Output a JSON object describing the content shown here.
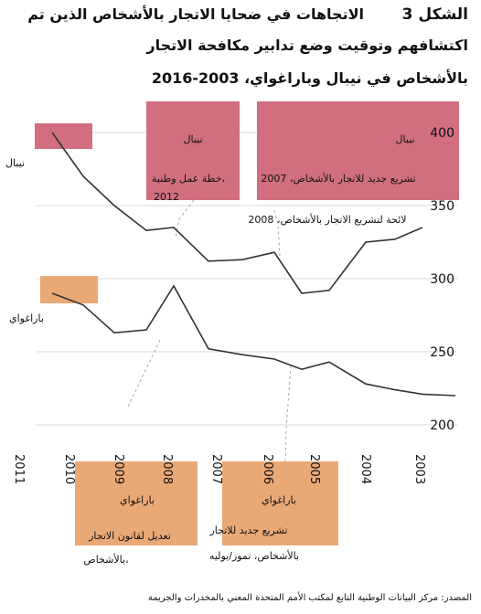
{
  "figure": {
    "number": "الشكل 3",
    "title_line1": "الاتجاهات في ضحايا الاتجار بالأشخاص الذين تم",
    "title_line2": "اكتشافهم وتوقيت وضع تدابير مكافحة الاتجار",
    "title_line3": "بالأشخاص في نيبال وباراغواي، 2003-2016"
  },
  "source": "المصدر: مركز البيانات الوطنية التابع لمكتب الأمم المتحدة المعني بالمخدرات والجريمة",
  "colors": {
    "nepal": "#d16f80",
    "paraguay": "#e9a977",
    "grid": "#d9d9d9",
    "line": "#333333"
  },
  "chart_data": {
    "type": "line",
    "x": [
      "2003",
      "2004",
      "2005",
      "2006",
      "2007",
      "2008",
      "2009",
      "2010",
      "2011",
      "2012",
      "2013",
      "2014",
      "2015",
      "2016"
    ],
    "x_tick_labels": [
      "2003",
      "2004",
      "2005",
      "2006",
      "2007",
      "2008",
      "2009",
      "2010",
      "2011"
    ],
    "ylim": [
      200,
      400
    ],
    "y_ticks": [
      200,
      250,
      300,
      350,
      400
    ],
    "series": [
      {
        "name": "نيبال",
        "values": [
          400,
          370,
          350,
          333,
          335,
          312,
          313,
          318,
          290,
          292,
          325,
          327,
          335,
          null
        ]
      },
      {
        "name": "باراغواي",
        "values": [
          290,
          282,
          263,
          265,
          295,
          252,
          248,
          245,
          238,
          243,
          228,
          224,
          221,
          220
        ]
      }
    ],
    "nepal_box_labels": [
      "نيبال",
      "نيبال"
    ],
    "paraguay_box_labels": [
      "باراغواي",
      "باراغواي"
    ],
    "annotations": [
      {
        "text_line1": "خطة عمل وطنية،",
        "text_line2": "2012"
      },
      {
        "text_line1": "تشريع جديد للاتجار بالأشخاص، 2007",
        "text_line2": ""
      },
      {
        "text_line1": "لائحة لتشريع الاتجار بالأشخاص، 2008",
        "text_line2": ""
      },
      {
        "text_line1": "تعديل لقانون الاتجار",
        "text_line2": "بالأشخاص،"
      },
      {
        "text_line1": "تشريع جديد للاتجار",
        "text_line2": "بالأشخاص، تموز/يوليه"
      }
    ]
  }
}
